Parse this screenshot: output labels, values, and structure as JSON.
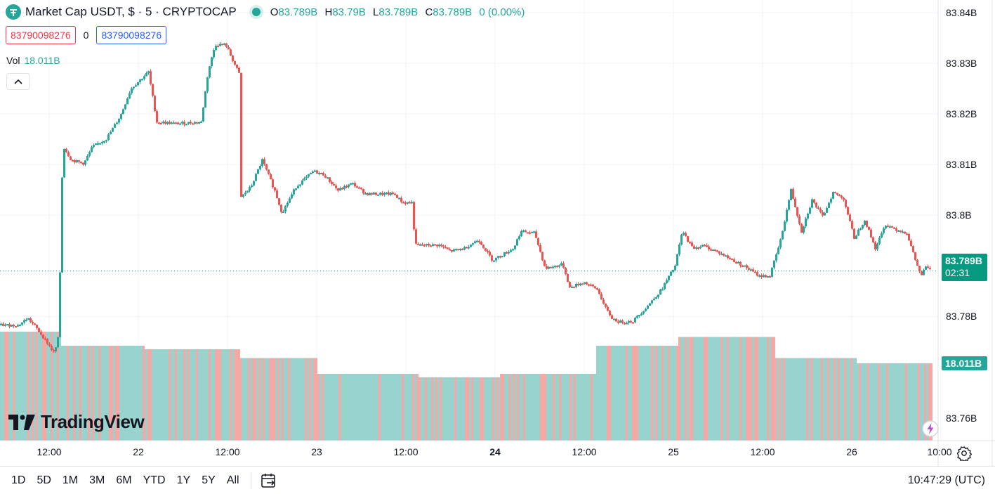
{
  "legend": {
    "title": "Market Cap USDT, $ · 5 · CRYPTOCAP",
    "o_key": "O",
    "o_val": "83.789B",
    "h_key": "H",
    "h_val": "83.79B",
    "l_key": "L",
    "l_val": "83.789B",
    "c_key": "C",
    "c_val": "83.789B",
    "change": "0 (0.00%)",
    "sell_price": "83790098276",
    "spread": "0",
    "buy_price": "83790098276",
    "vol_label": "Vol",
    "vol_value": "18.011B"
  },
  "price_tag": {
    "price": "83.789B",
    "countdown": "02:31"
  },
  "vol_tag": "18.011B",
  "logo_text": "TradingView",
  "range_buttons": [
    "1D",
    "5D",
    "1M",
    "3M",
    "6M",
    "YTD",
    "1Y",
    "5Y",
    "All"
  ],
  "clock": "10:47:29 (UTC)",
  "icons": {
    "symbol": "tether-logo-icon",
    "collapse": "chevron-up-icon",
    "flash": "lightning-icon",
    "settings": "gear-icon",
    "date_range": "calendar-range-icon"
  },
  "colors": {
    "up": "#26a69a",
    "down": "#ef5350",
    "vol_up": "#99d3cd",
    "vol_down": "#f5a8a6",
    "accent": "#089981"
  },
  "chart_data": {
    "type": "candlestick",
    "y_axis": {
      "ticks": [
        83.84,
        83.83,
        83.82,
        83.81,
        83.8,
        83.78,
        83.76
      ],
      "tick_labels": [
        "83.84B",
        "83.83B",
        "83.82B",
        "83.81B",
        "83.8B",
        "83.78B",
        "83.76B"
      ],
      "range": [
        83.7555,
        83.8425
      ]
    },
    "x_axis": {
      "labels": [
        "12:00",
        "22",
        "12:00",
        "23",
        "12:00",
        "24",
        "12:00",
        "25",
        "12:00",
        "26",
        "10:00"
      ],
      "bold": [
        false,
        false,
        false,
        false,
        false,
        true,
        false,
        false,
        false,
        false,
        false
      ]
    },
    "price_path": [
      [
        0,
        83.7783
      ],
      [
        25,
        83.7783
      ],
      [
        38,
        83.7797
      ],
      [
        50,
        83.7778
      ],
      [
        62,
        83.7756
      ],
      [
        76,
        83.7727
      ],
      [
        82,
        83.7762
      ],
      [
        88,
        83.8138
      ],
      [
        100,
        83.8109
      ],
      [
        118,
        83.8102
      ],
      [
        130,
        83.8135
      ],
      [
        150,
        83.8151
      ],
      [
        170,
        83.8196
      ],
      [
        185,
        83.825
      ],
      [
        210,
        83.8283
      ],
      [
        222,
        83.8184
      ],
      [
        250,
        83.8181
      ],
      [
        285,
        83.8184
      ],
      [
        295,
        83.8284
      ],
      [
        305,
        83.8337
      ],
      [
        320,
        83.8337
      ],
      [
        340,
        83.8276
      ],
      [
        342,
        83.8036
      ],
      [
        356,
        83.8056
      ],
      [
        372,
        83.8109
      ],
      [
        390,
        83.8048
      ],
      [
        400,
        83.8005
      ],
      [
        420,
        83.8056
      ],
      [
        445,
        83.8087
      ],
      [
        460,
        83.808
      ],
      [
        480,
        83.8049
      ],
      [
        500,
        83.8063
      ],
      [
        520,
        83.8042
      ],
      [
        560,
        83.8042
      ],
      [
        572,
        83.8025
      ],
      [
        585,
        83.8025
      ],
      [
        590,
        83.7941
      ],
      [
        625,
        83.7941
      ],
      [
        640,
        83.7929
      ],
      [
        660,
        83.7935
      ],
      [
        680,
        83.7952
      ],
      [
        700,
        83.7911
      ],
      [
        730,
        83.7935
      ],
      [
        740,
        83.7968
      ],
      [
        760,
        83.7965
      ],
      [
        775,
        83.7895
      ],
      [
        800,
        83.7903
      ],
      [
        810,
        83.7857
      ],
      [
        830,
        83.7868
      ],
      [
        850,
        83.7853
      ],
      [
        860,
        83.7818
      ],
      [
        870,
        83.7797
      ],
      [
        880,
        83.7789
      ],
      [
        900,
        83.7791
      ],
      [
        920,
        83.782
      ],
      [
        940,
        83.7852
      ],
      [
        960,
        83.79
      ],
      [
        970,
        83.7968
      ],
      [
        985,
        83.7935
      ],
      [
        1000,
        83.794
      ],
      [
        1020,
        83.7928
      ],
      [
        1040,
        83.7913
      ],
      [
        1060,
        83.7898
      ],
      [
        1080,
        83.788
      ],
      [
        1095,
        83.788
      ],
      [
        1110,
        83.795
      ],
      [
        1125,
        83.805
      ],
      [
        1140,
        83.7968
      ],
      [
        1155,
        83.803
      ],
      [
        1170,
        83.7997
      ],
      [
        1185,
        83.8045
      ],
      [
        1200,
        83.8033
      ],
      [
        1215,
        83.7955
      ],
      [
        1230,
        83.7991
      ],
      [
        1245,
        83.7935
      ],
      [
        1260,
        83.7982
      ],
      [
        1275,
        83.7972
      ],
      [
        1290,
        83.7965
      ],
      [
        1300,
        83.792
      ],
      [
        1310,
        83.788
      ],
      [
        1318,
        83.79
      ],
      [
        1325,
        83.789
      ]
    ],
    "volume_segments": [
      [
        0,
        86,
        0.62
      ],
      [
        86,
        204,
        0.54
      ],
      [
        204,
        341,
        0.52
      ],
      [
        341,
        452,
        0.47
      ],
      [
        452,
        596,
        0.38
      ],
      [
        596,
        712,
        0.36
      ],
      [
        712,
        849,
        0.38
      ],
      [
        849,
        966,
        0.54
      ],
      [
        966,
        1103,
        0.59
      ],
      [
        1103,
        1220,
        0.47
      ],
      [
        1220,
        1328,
        0.44
      ]
    ],
    "last_price": 83.789,
    "last_volume": "18.011B",
    "grid": true
  }
}
